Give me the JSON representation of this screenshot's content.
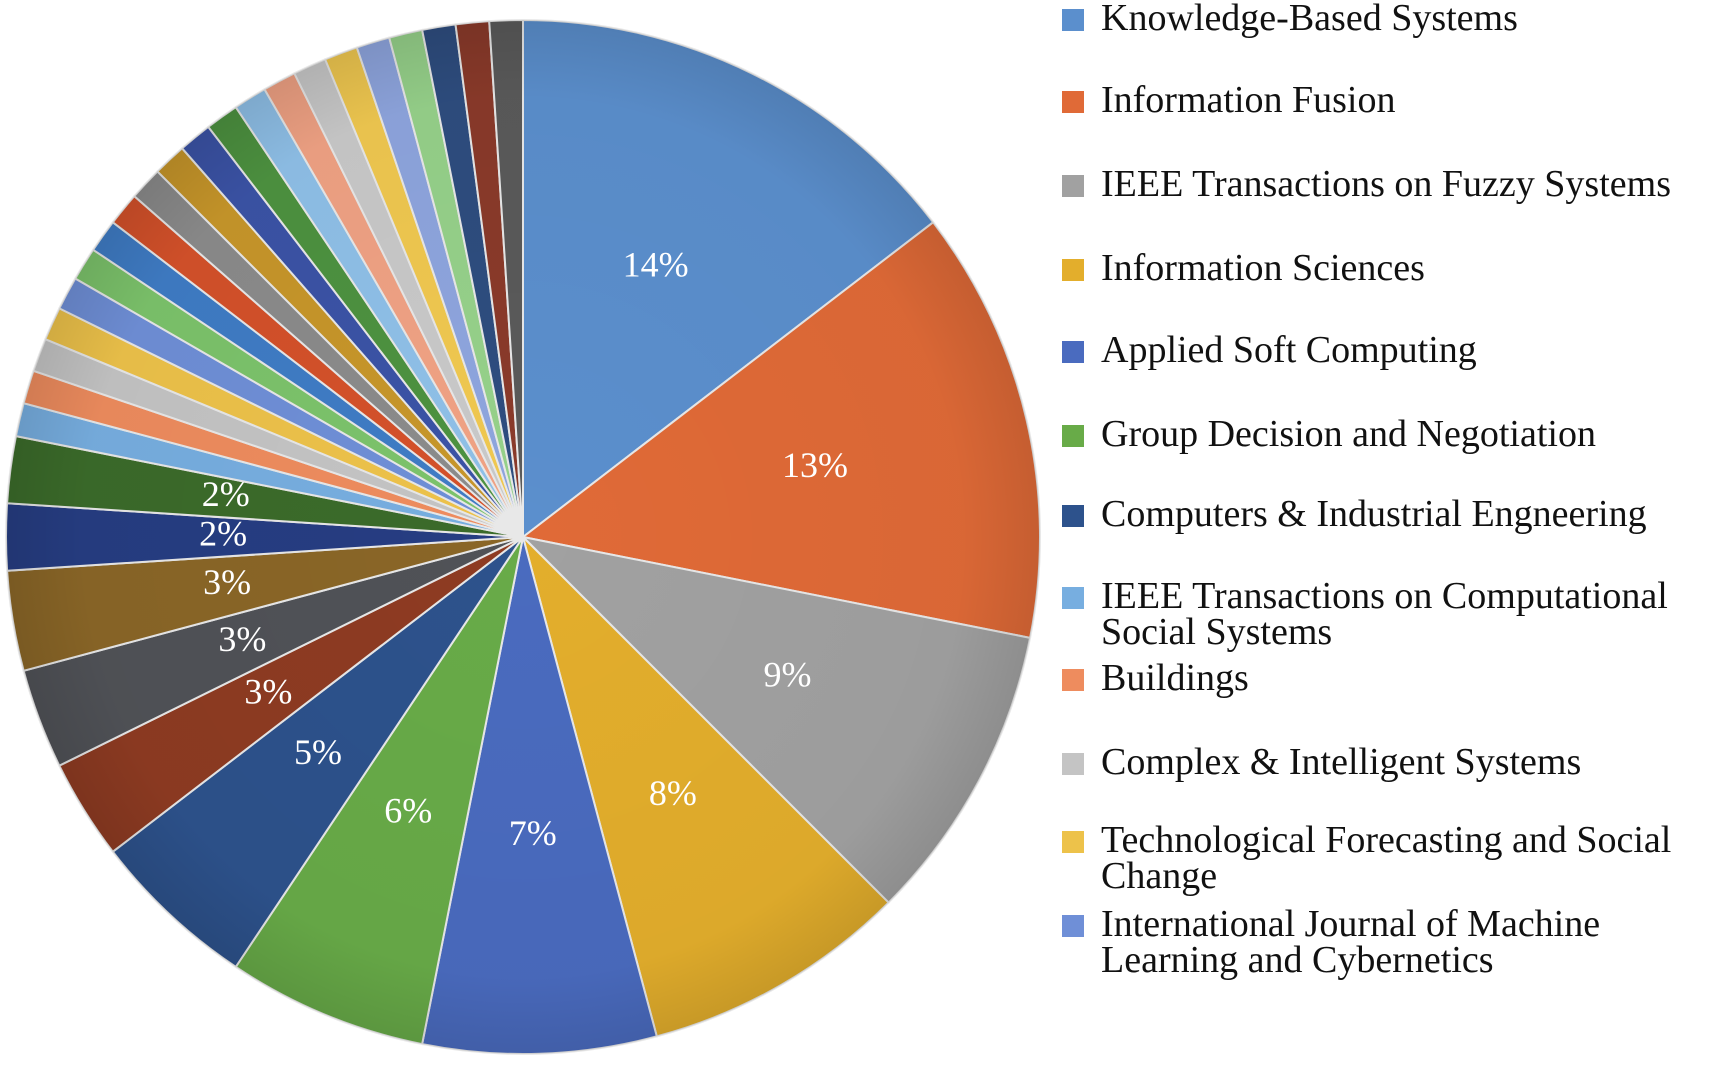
{
  "chart_data": {
    "type": "pie",
    "start_angle_deg": 0,
    "direction": "clockwise",
    "slices": [
      {
        "value": 14,
        "label": "14%",
        "color": "#5b8fcd"
      },
      {
        "value": 13,
        "label": "13%",
        "color": "#e06a37"
      },
      {
        "value": 9,
        "label": "9%",
        "color": "#a1a1a1"
      },
      {
        "value": 8,
        "label": "8%",
        "color": "#e3ae2c"
      },
      {
        "value": 7,
        "label": "7%",
        "color": "#4a6bbf"
      },
      {
        "value": 6,
        "label": "6%",
        "color": "#68ab48"
      },
      {
        "value": 5,
        "label": "5%",
        "color": "#2d528c"
      },
      {
        "value": 3,
        "label": "3%",
        "color": "#8e3b22"
      },
      {
        "value": 3,
        "label": "3%",
        "color": "#505257"
      },
      {
        "value": 3,
        "label": "3%",
        "color": "#8a6627"
      },
      {
        "value": 2,
        "label": "2%",
        "color": "#263d82"
      },
      {
        "value": 2,
        "label": "2%",
        "color": "#3b6b2a"
      },
      {
        "value": 1,
        "label": "",
        "color": "#77aee0"
      },
      {
        "value": 1,
        "label": "",
        "color": "#ee8c5e"
      },
      {
        "value": 1,
        "label": "",
        "color": "#c4c4c4"
      },
      {
        "value": 1,
        "label": "",
        "color": "#edc24a"
      },
      {
        "value": 1,
        "label": "",
        "color": "#6f8fd7"
      },
      {
        "value": 1,
        "label": "",
        "color": "#7cc36b"
      },
      {
        "value": 1,
        "label": "",
        "color": "#3f7cc5"
      },
      {
        "value": 1,
        "label": "",
        "color": "#d4512a"
      },
      {
        "value": 1,
        "label": "",
        "color": "#8b8b8b"
      },
      {
        "value": 1,
        "label": "",
        "color": "#c7962a"
      },
      {
        "value": 1,
        "label": "",
        "color": "#3b53a6"
      },
      {
        "value": 1,
        "label": "",
        "color": "#4d9240"
      },
      {
        "value": 1,
        "label": "",
        "color": "#8fc0e8"
      },
      {
        "value": 1,
        "label": "",
        "color": "#f0a284"
      },
      {
        "value": 1,
        "label": "",
        "color": "#c9c9c9"
      },
      {
        "value": 1,
        "label": "",
        "color": "#f0c850"
      },
      {
        "value": 1,
        "label": "",
        "color": "#8ea5de"
      },
      {
        "value": 1,
        "label": "",
        "color": "#96d18a"
      },
      {
        "value": 1,
        "label": "",
        "color": "#2e4d7f"
      },
      {
        "value": 1,
        "label": "",
        "color": "#8a3a2a"
      },
      {
        "value": 1,
        "label": "",
        "color": "#5a5a5a"
      }
    ],
    "legend": [
      {
        "name": "Knowledge-Based Systems",
        "color": "#5b8fcd"
      },
      {
        "name": "Information Fusion",
        "color": "#e06a37"
      },
      {
        "name": "IEEE Transactions on Fuzzy Systems",
        "color": "#a1a1a1"
      },
      {
        "name": "Information Sciences",
        "color": "#e3ae2c"
      },
      {
        "name": "Applied Soft Computing",
        "color": "#4a6bbf"
      },
      {
        "name": "Group Decision and Negotiation",
        "color": "#68ab48"
      },
      {
        "name": "Computers & Industrial Engneering",
        "color": "#2d528c"
      },
      {
        "name": "IEEE Transactions on Computational Social Systems",
        "color": "#77aee0"
      },
      {
        "name": "Buildings",
        "color": "#ee8c5e"
      },
      {
        "name": "Complex & Intelligent Systems",
        "color": "#c4c4c4"
      },
      {
        "name": "Technological Forecasting and Social Change",
        "color": "#edc24a"
      },
      {
        "name": "International Journal of Machine Learning and Cybernetics",
        "color": "#6f8fd7"
      }
    ],
    "legend_placement": "right"
  }
}
